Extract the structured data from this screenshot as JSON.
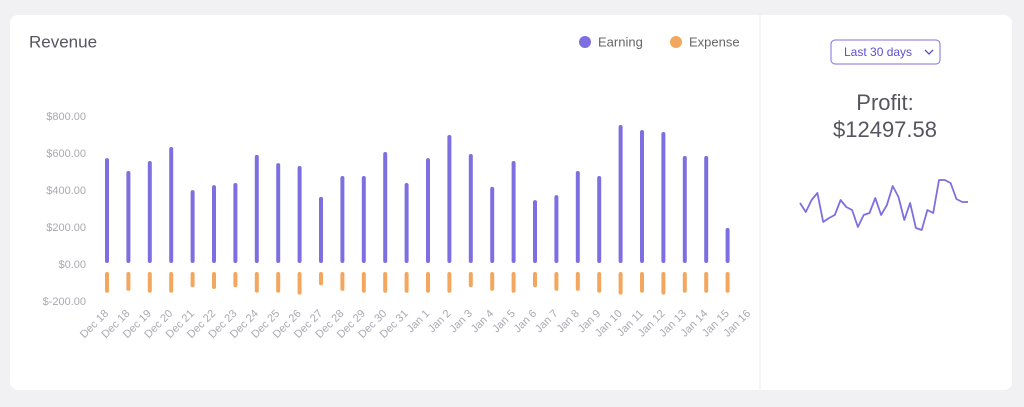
{
  "chart_data": {
    "type": "bar",
    "title": "Revenue",
    "categories": [
      "Dec 18",
      "Dec 18",
      "Dec 19",
      "Dec 20",
      "Dec 21",
      "Dec 22",
      "Dec 23",
      "Dec 24",
      "Dec 25",
      "Dec 26",
      "Dec 27",
      "Dec 28",
      "Dec 29",
      "Dec 30",
      "Dec 31",
      "Jan 1",
      "Jan 2",
      "Jan 3",
      "Jan 4",
      "Jan 5",
      "Jan 6",
      "Jan 7",
      "Jan 8",
      "Jan 9",
      "Jan 10",
      "Jan 11",
      "Jan 12",
      "Jan 13",
      "Jan 14",
      "Jan 15",
      "Jan 16"
    ],
    "series": [
      {
        "name": "Earning",
        "color": "#7d6fe0",
        "values": [
          578,
          508,
          562,
          638,
          405,
          432,
          443,
          595,
          551,
          535,
          368,
          481,
          481,
          611,
          443,
          578,
          703,
          600,
          422,
          562,
          351,
          378,
          508,
          481,
          757,
          730,
          719,
          589,
          589,
          200,
          null
        ]
      },
      {
        "name": "Expense",
        "color": "#f2a65e",
        "values": [
          -150,
          -140,
          -150,
          -150,
          -120,
          -130,
          -120,
          -150,
          -150,
          -160,
          -110,
          -140,
          -150,
          -150,
          -150,
          -150,
          -150,
          -120,
          -140,
          -150,
          -120,
          -140,
          -140,
          -150,
          -160,
          -150,
          -160,
          -150,
          -150,
          -150,
          null
        ]
      }
    ],
    "ylim": [
      -200,
      800
    ],
    "yticks": [
      {
        "value": -200,
        "label": "$-200.00"
      },
      {
        "value": 0,
        "label": "$0.00"
      },
      {
        "value": 200,
        "label": "$200.00"
      },
      {
        "value": 400,
        "label": "$400.00"
      },
      {
        "value": 600,
        "label": "$600.00"
      },
      {
        "value": 800,
        "label": "$800.00"
      }
    ],
    "grid": false,
    "legend": "top-right"
  },
  "side": {
    "period": "Last 30 days",
    "profit_label": "Profit:",
    "profit_value": "$12497.58",
    "trend": {
      "color": "#7d6fe0",
      "ylim": [
        0,
        70
      ],
      "values": [
        37,
        28,
        40,
        47,
        18,
        22,
        25,
        40,
        33,
        30,
        13,
        25,
        27,
        42,
        25,
        35,
        54,
        43,
        20,
        37,
        12,
        10,
        30,
        27,
        60,
        60,
        57,
        41,
        38,
        38
      ]
    }
  }
}
